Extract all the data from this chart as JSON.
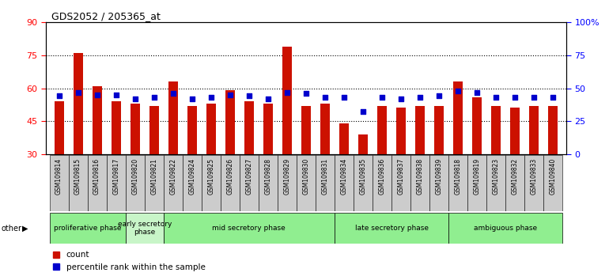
{
  "title": "GDS2052 / 205365_at",
  "samples": [
    "GSM109814",
    "GSM109815",
    "GSM109816",
    "GSM109817",
    "GSM109820",
    "GSM109821",
    "GSM109822",
    "GSM109824",
    "GSM109825",
    "GSM109826",
    "GSM109827",
    "GSM109828",
    "GSM109829",
    "GSM109830",
    "GSM109831",
    "GSM109834",
    "GSM109835",
    "GSM109836",
    "GSM109837",
    "GSM109838",
    "GSM109839",
    "GSM109818",
    "GSM109819",
    "GSM109823",
    "GSM109832",
    "GSM109833",
    "GSM109840"
  ],
  "red_values": [
    54,
    76,
    61,
    54,
    53,
    52,
    63,
    52,
    53,
    59,
    54,
    53,
    79,
    52,
    53,
    44,
    39,
    52,
    51,
    52,
    52,
    63,
    56,
    52,
    51,
    52,
    52
  ],
  "blue_pct": [
    44,
    47,
    45,
    45,
    42,
    43,
    46,
    42,
    43,
    45,
    44,
    42,
    47,
    46,
    43,
    43,
    32,
    43,
    42,
    43,
    44,
    48,
    47,
    43,
    43,
    43,
    43
  ],
  "phases": [
    {
      "name": "proliferative phase",
      "start": 0,
      "end": 4,
      "color": "#90EE90"
    },
    {
      "name": "early secretory\nphase",
      "start": 4,
      "end": 6,
      "color": "#c8f5c8"
    },
    {
      "name": "mid secretory phase",
      "start": 6,
      "end": 15,
      "color": "#90EE90"
    },
    {
      "name": "late secretory phase",
      "start": 15,
      "end": 21,
      "color": "#90EE90"
    },
    {
      "name": "ambiguous phase",
      "start": 21,
      "end": 27,
      "color": "#90EE90"
    }
  ],
  "ylim_left": [
    30,
    90
  ],
  "ylim_right": [
    0,
    100
  ],
  "yticks_left": [
    30,
    45,
    60,
    75,
    90
  ],
  "yticks_right": [
    0,
    25,
    50,
    75,
    100
  ],
  "bar_color": "#cc1100",
  "dot_color": "#0000cc",
  "tick_bg_color": "#cccccc",
  "phase_border_color": "#000000",
  "other_label": "other",
  "legend_count": "count",
  "legend_pct": "percentile rank within the sample"
}
